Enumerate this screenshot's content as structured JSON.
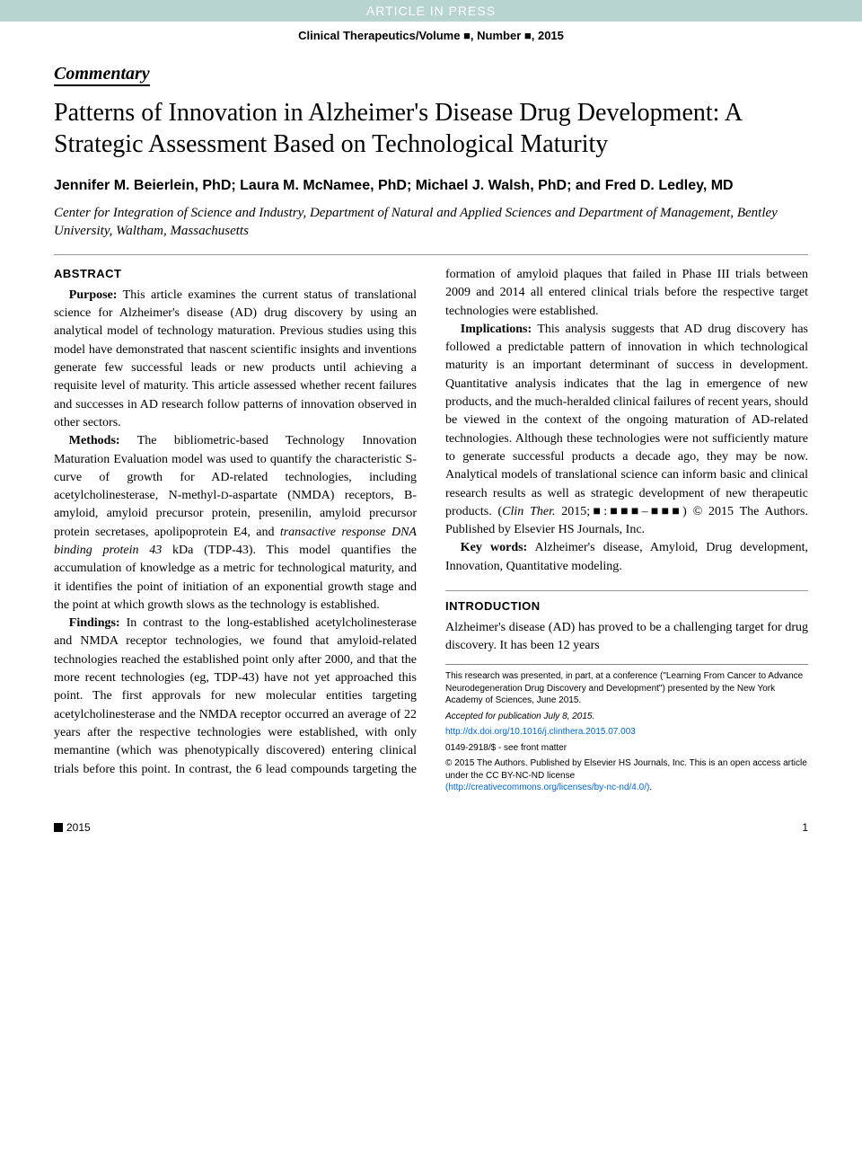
{
  "banner": "ARTICLE IN PRESS",
  "journal_info": "Clinical Therapeutics/Volume ■, Number ■, 2015",
  "commentary_label": "Commentary",
  "title": "Patterns of Innovation in Alzheimer's Disease Drug Development: A Strategic Assessment Based on Technological Maturity",
  "authors": "Jennifer M. Beierlein, PhD; Laura M. McNamee, PhD; Michael J. Walsh, PhD; and Fred D. Ledley, MD",
  "affiliation": "Center for Integration of Science and Industry, Department of Natural and Applied Sciences and Department of Management, Bentley University, Waltham, Massachusetts",
  "abstract_heading": "ABSTRACT",
  "abstract": {
    "purpose_label": "Purpose:",
    "purpose_text": " This article examines the current status of translational science for Alzheimer's disease (AD) drug discovery by using an analytical model of technology maturation. Previous studies using this model have demonstrated that nascent scientific insights and inventions generate few successful leads or new products until achieving a requisite level of maturity. This article assessed whether recent failures and successes in AD research follow patterns of innovation observed in other sectors.",
    "methods_label": "Methods:",
    "methods_text_1": " The bibliometric-based Technology Innovation Maturation Evaluation model was used to quantify the characteristic S-curve of growth for AD-related technologies, including acetylcholinesterase, N-methyl-",
    "methods_small_d": "D",
    "methods_text_2": "-aspartate (NMDA) receptors, B-amyloid, amyloid precursor protein, presenilin, amyloid precursor protein secretases, apolipoprotein E4, and ",
    "methods_italic": "transactive response DNA binding protein 43",
    "methods_text_3": " kDa (TDP-43). This model quantifies the accumulation of knowledge as a metric for technological maturity, and it identifies the point of initiation of an exponential growth stage and the point at which growth slows as the technology is established.",
    "findings_label": "Findings:",
    "findings_text": " In contrast to the long-established acetylcholinesterase and NMDA receptor technologies, we found that amyloid-related technologies reached the established point only after 2000, and that the more recent technologies (eg, TDP-43) have not yet approached this point. The first approvals for new molecular entities targeting acetylcholinesterase and the NMDA receptor occurred an average of 22 years after the respective technologies were established, with only memantine (which was phenotypically discovered) entering clinical trials before this point. In contrast, the 6 lead compounds targeting the formation of amyloid plaques that failed in Phase III trials between 2009 and 2014 all entered clinical trials before the respective target technologies were established.",
    "implications_label": "Implications:",
    "implications_text": " This analysis suggests that AD drug discovery has followed a predictable pattern of innovation in which technological maturity is an important determinant of success in development. Quantitative analysis indicates that the lag in emergence of new products, and the much-heralded clinical failures of recent years, should be viewed in the context of the ongoing maturation of AD-related technologies. Although these technologies were not sufficiently mature to generate successful products a decade ago, they may be now. Analytical models of translational science can inform basic and clinical research results as well as strategic development of new therapeutic products. (",
    "citation_italic": "Clin Ther.",
    "citation_text": " 2015;■:■■■–■■■) © 2015 The Authors. Published by Elsevier HS Journals, Inc.",
    "keywords_label": "Key words:",
    "keywords_text": " Alzheimer's disease, Amyloid, Drug development, Innovation, Quantitative modeling."
  },
  "intro_heading": "INTRODUCTION",
  "intro_text": "Alzheimer's disease (AD) has proved to be a challenging target for drug discovery. It has been 12 years",
  "footnotes": {
    "conference": "This research was presented, in part, at a conference (\"Learning From Cancer to Advance Neurodegeneration Drug Discovery and Development\") presented by the New York Academy of Sciences, June 2015.",
    "accepted_italic": "Accepted for publication July 8, 2015.",
    "doi": "http://dx.doi.org/10.1016/j.clinthera.2015.07.003",
    "issn": "0149-2918/$ - see front matter",
    "copyright": "© 2015 The Authors. Published by Elsevier HS Journals, Inc. This is an open access article under the CC BY-NC-ND license ",
    "license_link": "(http://creativecommons.org/licenses/by-nc-nd/4.0/)",
    "license_url": "http://creativecommons.org/licenses/by-nc-nd/4.0/"
  },
  "footer": {
    "year": "2015",
    "page": "1"
  }
}
